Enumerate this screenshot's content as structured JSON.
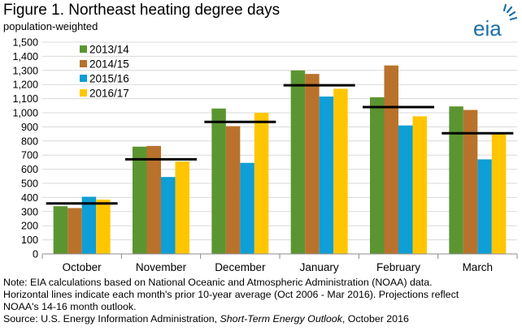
{
  "header": {
    "title": "Figure 1. Northeast heating degree days",
    "subtitle": "population-weighted"
  },
  "logo": {
    "text": "eia",
    "icon": "eia-logo-icon",
    "color": "#1a6fa8"
  },
  "chart_data": {
    "type": "bar",
    "title": "Figure 1. Northeast heating degree days",
    "subtitle": "population-weighted",
    "xlabel": "",
    "ylabel": "",
    "ylim": [
      0,
      1500
    ],
    "ytick_step": 100,
    "yticks": [
      "0",
      "100",
      "200",
      "300",
      "400",
      "500",
      "600",
      "700",
      "800",
      "900",
      "1,000",
      "1,100",
      "1,200",
      "1,300",
      "1,400",
      "1,500"
    ],
    "categories": [
      "October",
      "November",
      "December",
      "January",
      "February",
      "March"
    ],
    "series": [
      {
        "name": "2013/14",
        "color": "#5b9531",
        "values": [
          338,
          760,
          1030,
          1300,
          1110,
          1045
        ]
      },
      {
        "name": "2014/15",
        "color": "#b9722b",
        "values": [
          325,
          765,
          905,
          1275,
          1335,
          1020
        ]
      },
      {
        "name": "2015/16",
        "color": "#0f9ed5",
        "values": [
          405,
          545,
          645,
          1115,
          910,
          670
        ]
      },
      {
        "name": "2016/17",
        "color": "#ffc600",
        "values": [
          385,
          655,
          1000,
          1170,
          975,
          850
        ]
      }
    ],
    "ten_year_average": {
      "color": "#000000",
      "values": [
        358,
        670,
        935,
        1195,
        1040,
        855
      ]
    },
    "grid": true,
    "legend_position": "top-left"
  },
  "notes": {
    "line1": "Note: EIA calculations based on National Oceanic and Atmospheric Administration (NOAA) data.",
    "line2": "Horizontal lines indicate each month's prior 10-year average (Oct 2006 - Mar 2016). Projections reflect",
    "line3": "NOAA's 14-16 month outlook.",
    "source_prefix": "Source: U.S. Energy Information Administration, ",
    "source_italic": "Short-Term Energy Outlook",
    "source_suffix": ", October 2016"
  }
}
